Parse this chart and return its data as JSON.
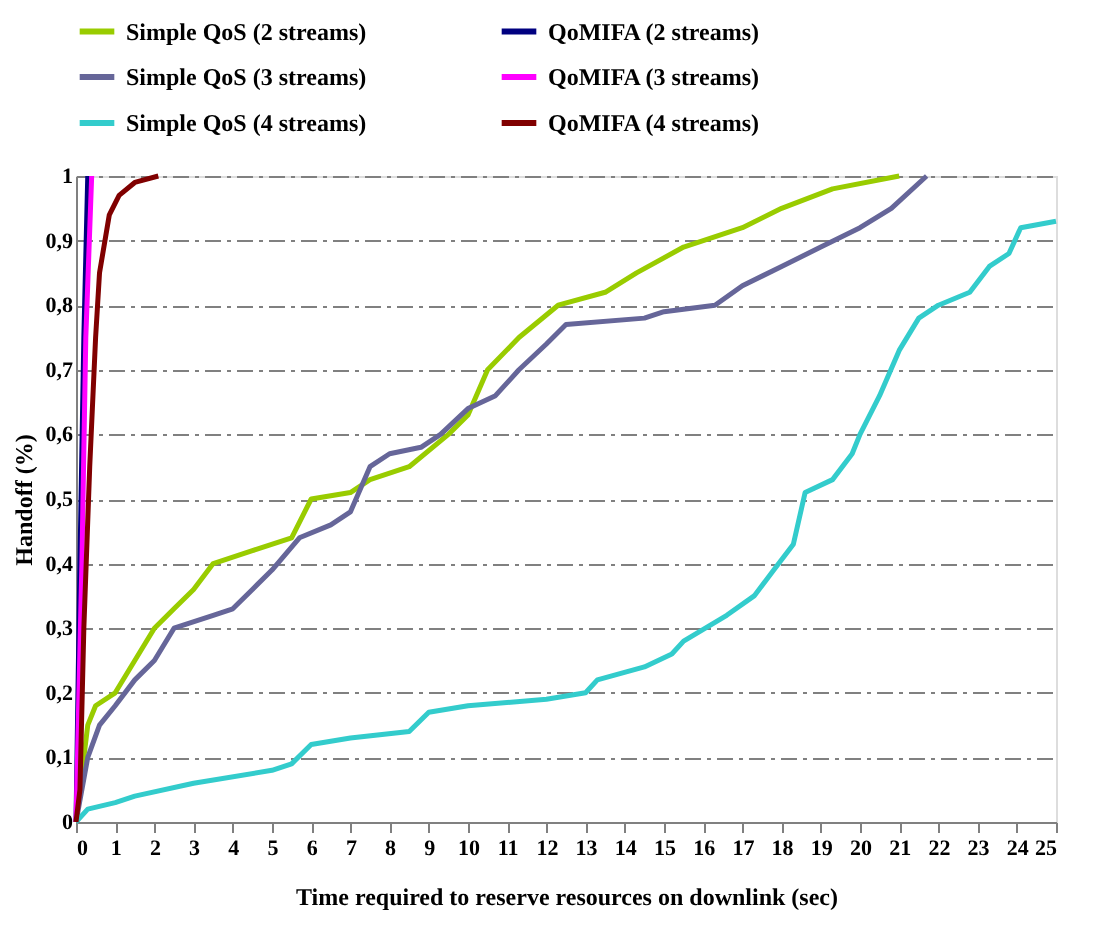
{
  "chart_data": {
    "type": "line",
    "xlabel": "Time required to reserve resources on downlink (sec)",
    "ylabel": "Handoff (%)",
    "xlim": [
      0,
      25
    ],
    "xticks": [
      0,
      1,
      2,
      3,
      4,
      5,
      6,
      7,
      8,
      9,
      10,
      11,
      12,
      13,
      14,
      15,
      16,
      17,
      18,
      19,
      20,
      21,
      22,
      23,
      24,
      25
    ],
    "ylim": [
      0,
      1
    ],
    "yticks": [
      0,
      {
        "value": 0.1,
        "label": "0,1"
      },
      {
        "value": 0.2,
        "label": "0,2"
      },
      {
        "value": 0.3,
        "label": "0,3"
      },
      {
        "value": 0.4,
        "label": "0,4"
      },
      {
        "value": 0.5,
        "label": "0,5"
      },
      {
        "value": 0.6,
        "label": "0,6"
      },
      {
        "value": 0.7,
        "label": "0,7"
      },
      {
        "value": 0.8,
        "label": "0,8"
      },
      {
        "value": 0.9,
        "label": "0,9"
      },
      1
    ],
    "grid": "y",
    "legend": "top",
    "marker": "none",
    "line_style": "solid",
    "series": [
      {
        "name": "Simple QoS (2 streams)",
        "color": "#99cc00",
        "x": [
          0,
          0.3,
          0.5,
          1,
          1.5,
          2,
          2.5,
          3,
          3.5,
          4.5,
          5.5,
          6,
          7,
          7.5,
          8.5,
          9.5,
          10,
          10.5,
          11.3,
          12.3,
          13.5,
          14.3,
          15.5,
          17,
          18,
          19.3,
          21
        ],
        "values": [
          0,
          0.15,
          0.18,
          0.2,
          0.25,
          0.3,
          0.33,
          0.36,
          0.4,
          0.42,
          0.44,
          0.5,
          0.51,
          0.53,
          0.55,
          0.6,
          0.63,
          0.7,
          0.75,
          0.8,
          0.82,
          0.85,
          0.89,
          0.92,
          0.95,
          0.98,
          1
        ]
      },
      {
        "name": "QoMIFA (2 streams)",
        "color": "#000080",
        "x": [
          0,
          0.1,
          0.2,
          0.3
        ],
        "values": [
          0,
          0.4,
          0.75,
          1
        ]
      },
      {
        "name": "Simple QoS (3 streams)",
        "color": "#666699",
        "x": [
          0,
          0.3,
          0.6,
          1,
          1.5,
          2,
          2.5,
          3.5,
          4,
          4.5,
          5,
          5.7,
          6.5,
          7,
          7.5,
          8,
          8.8,
          9.3,
          10,
          10.7,
          11.3,
          12,
          12.5,
          14.5,
          15,
          16.3,
          17,
          18,
          19,
          20,
          20.8,
          21.7
        ],
        "values": [
          0,
          0.1,
          0.15,
          0.18,
          0.22,
          0.25,
          0.3,
          0.32,
          0.33,
          0.36,
          0.39,
          0.44,
          0.46,
          0.48,
          0.55,
          0.57,
          0.58,
          0.6,
          0.64,
          0.66,
          0.7,
          0.74,
          0.77,
          0.78,
          0.79,
          0.8,
          0.83,
          0.86,
          0.89,
          0.92,
          0.95,
          1
        ]
      },
      {
        "name": "QoMIFA (3 streams)",
        "color": "#ff00ff",
        "x": [
          0,
          0.15,
          0.25,
          0.4
        ],
        "values": [
          0,
          0.4,
          0.75,
          1
        ]
      },
      {
        "name": "Simple QoS (4 streams)",
        "color": "#33cccc",
        "x": [
          0,
          0.3,
          1,
          1.5,
          3,
          5,
          5.5,
          6,
          7,
          8.5,
          9,
          10,
          12,
          13,
          13.3,
          14.5,
          15.2,
          15.5,
          16.6,
          17.3,
          17.8,
          18.3,
          18.6,
          19.3,
          19.8,
          20,
          20.5,
          21,
          21.5,
          22,
          22.8,
          23.3,
          23.8,
          24.1,
          25
        ],
        "values": [
          0,
          0.02,
          0.03,
          0.04,
          0.06,
          0.08,
          0.09,
          0.12,
          0.13,
          0.14,
          0.17,
          0.18,
          0.19,
          0.2,
          0.22,
          0.24,
          0.26,
          0.28,
          0.32,
          0.35,
          0.39,
          0.43,
          0.51,
          0.53,
          0.57,
          0.6,
          0.66,
          0.73,
          0.78,
          0.8,
          0.82,
          0.86,
          0.88,
          0.92,
          0.93
        ]
      },
      {
        "name": "QoMIFA (4 streams)",
        "color": "#800000",
        "x": [
          0,
          0.1,
          0.2,
          0.35,
          0.5,
          0.6,
          0.85,
          1.1,
          1.5,
          2.1
        ],
        "values": [
          0,
          0.05,
          0.3,
          0.55,
          0.75,
          0.85,
          0.94,
          0.97,
          0.99,
          1
        ]
      }
    ]
  }
}
